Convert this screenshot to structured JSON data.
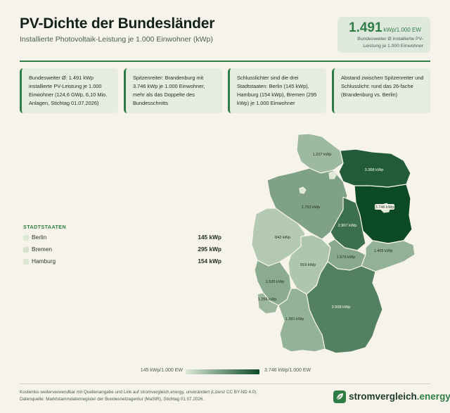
{
  "header": {
    "title": "PV-Dichte der Bundesländer",
    "subtitle": "Installierte Photovoltaik-Leistung je 1.000 Einwohner (kWp)"
  },
  "kpi": {
    "value": "1.491",
    "unit": "kWp/1.000 EW",
    "label": "Bundesweiter Ø installierte PV-Leistung je 1.000 Einwohner"
  },
  "facts": [
    "Bundesweiter Ø: 1.491 kWp installierte PV-Leistung je 1.000 Einwohner (124,6 GWp, 6,10 Mio. Anlagen, Stichtag 01.07.2026)",
    "Spitzenreiter: Brandenburg mit 3.746 kWp je 1.000 Einwohner, mehr als das Doppelte des Bundesschnitts",
    "Schlusslichter sind die drei Stadtstaaten: Berlin (145 kWp), Hamburg (154 kWp), Bremen (295 kWp) je 1.000 Einwohner",
    "Abstand zwischen Spitzenreiter und Schlusslicht: rund das 26-fache (Brandenburg vs. Berlin)"
  ],
  "stadtstaaten": {
    "heading": "STADTSTAATEN",
    "items": [
      {
        "name": "Berlin",
        "value": "145 kWp",
        "kwp": 145
      },
      {
        "name": "Bremen",
        "value": "295 kWp",
        "kwp": 295
      },
      {
        "name": "Hamburg",
        "value": "154 kWp",
        "kwp": 154
      }
    ]
  },
  "map": {
    "scale": {
      "min": 145,
      "max": 3746
    },
    "colors": {
      "low": "#dce8d4",
      "high": "#0b4a25"
    },
    "states": [
      {
        "id": "schleswig-holstein",
        "label": "1.227 kWp",
        "kwp": 1227
      },
      {
        "id": "mecklenburg-vorpommern",
        "label": "3.368 kWp",
        "kwp": 3368
      },
      {
        "id": "niedersachsen",
        "label": "1.753 kWp",
        "kwp": 1753
      },
      {
        "id": "brandenburg",
        "label": "3.746 kWp",
        "kwp": 3746
      },
      {
        "id": "sachsen-anhalt",
        "label": "2.907 kWp",
        "kwp": 2907
      },
      {
        "id": "nordrhein-westfalen",
        "label": "842 kWp",
        "kwp": 842
      },
      {
        "id": "hessen",
        "label": "919 kWp",
        "kwp": 919
      },
      {
        "id": "thueringen",
        "label": "1.579 kWp",
        "kwp": 1579
      },
      {
        "id": "sachsen",
        "label": "1.405 kWp",
        "kwp": 1405
      },
      {
        "id": "rheinland-pfalz",
        "label": "1.535 kWp",
        "kwp": 1535
      },
      {
        "id": "saarland",
        "label": "1.256 kWp",
        "kwp": 1256
      },
      {
        "id": "bayern",
        "label": "2.509 kWp",
        "kwp": 2509
      },
      {
        "id": "baden-wuerttemberg",
        "label": "1.381 kWp",
        "kwp": 1381
      }
    ]
  },
  "gradient_legend": {
    "min_label": "145 kWp/1.000 EW",
    "max_label": "3.746 kWp/1.000 EW"
  },
  "footer": {
    "text": "Kostenlos weiterverwendbar mit Quellenangabe und Link auf stromvergleich.energy, unverändert (Lizenz CC BY-ND 4.0). Datenquelle: Marktstammdatenregister der Bundesnetzagentur (MaStR), Stichtag 01.07.2026.",
    "brand_main": "stromvergleich",
    "brand_accent": ".energy"
  }
}
